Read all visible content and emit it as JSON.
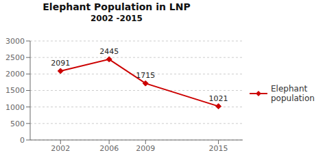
{
  "chart_data": {
    "type": "line",
    "title": "Elephant Population in LNP",
    "subtitle": "2002 -2015",
    "x": [
      2002,
      2006,
      2009,
      2015
    ],
    "series": [
      {
        "name": "Elephant\npopulation",
        "color": "#cc0000",
        "marker": "diamond",
        "values": [
          2091,
          2445,
          1715,
          1021
        ]
      }
    ],
    "xlim": [
      1999.5,
      2017
    ],
    "xticks": [
      2002,
      2006,
      2009,
      2015
    ],
    "ylim": [
      0,
      3000
    ],
    "yticks": [
      0,
      500,
      1000,
      1500,
      2000,
      2500,
      3000
    ],
    "grid": "y",
    "legend": "right",
    "data_labels": true
  }
}
